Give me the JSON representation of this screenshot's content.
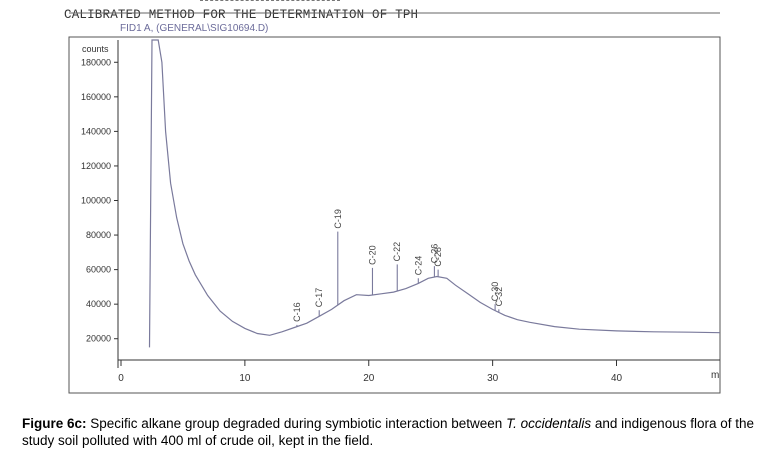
{
  "chart_data": {
    "type": "line",
    "title": "CALIBRATED METHOD FOR THE DETERMINATION OF TPH",
    "subtitle": "FID1 A, (GENERAL\\SIG10694.D)",
    "ylabel": "counts",
    "xlabel": "m",
    "xlim": [
      0,
      49
    ],
    "ylim": [
      10000,
      190000
    ],
    "x_ticks": [
      0,
      10,
      20,
      30,
      40
    ],
    "y_ticks": [
      20000,
      40000,
      60000,
      80000,
      100000,
      120000,
      140000,
      160000,
      180000
    ],
    "grid": false,
    "series": [
      {
        "x": [
          2.3,
          2.5,
          3.0,
          3.3,
          3.6,
          4.0,
          4.5,
          5.0,
          5.5,
          6.0,
          7.0,
          8.0,
          9.0,
          10.0,
          11.0,
          12.0,
          13.0,
          14.0,
          15.0,
          16.0,
          17.0,
          18.0,
          19.0,
          20.0,
          21.0,
          22.0,
          23.0,
          24.0,
          24.8,
          25.5,
          26.3,
          27.0,
          28.0,
          29.0,
          30.0,
          31.0,
          32.0,
          33.0,
          35.0,
          37.0,
          40.0,
          43.0,
          46.0,
          49.0
        ],
        "y": [
          15000,
          200000,
          200000,
          180000,
          140000,
          110000,
          90000,
          75000,
          65000,
          57000,
          45000,
          36000,
          30000,
          26000,
          23000,
          22000,
          24000,
          26500,
          29000,
          33000,
          37000,
          42000,
          45500,
          45000,
          46000,
          47000,
          49000,
          52000,
          55000,
          56000,
          55000,
          51000,
          46000,
          41000,
          37000,
          33500,
          31000,
          29500,
          27000,
          25500,
          24500,
          24000,
          23800,
          23500
        ]
      }
    ],
    "peaks": [
      {
        "label": "C-16",
        "x": 14.2,
        "y": 28000
      },
      {
        "label": "C-17",
        "x": 16.0,
        "y": 36500
      },
      {
        "label": "C-19",
        "x": 17.5,
        "y": 82000
      },
      {
        "label": "C-20",
        "x": 20.3,
        "y": 61000
      },
      {
        "label": "C-22",
        "x": 22.3,
        "y": 63000
      },
      {
        "label": "C-24",
        "x": 24.0,
        "y": 55000
      },
      {
        "label": "C-26",
        "x": 25.3,
        "y": 62000
      },
      {
        "label": "C-28",
        "x": 25.6,
        "y": 60000
      },
      {
        "label": "C-30",
        "x": 30.2,
        "y": 40000
      },
      {
        "label": "C-32",
        "x": 30.5,
        "y": 37000
      }
    ]
  },
  "caption": {
    "figure_label": "Figure 6c:",
    "text_before_italic": " Specific alkane group degraded during symbiotic interaction between ",
    "italic": "T. occidentalis",
    "text_after_italic": " and indigenous flora of the study soil polluted with 400 ml of crude oil, kept in the field."
  }
}
